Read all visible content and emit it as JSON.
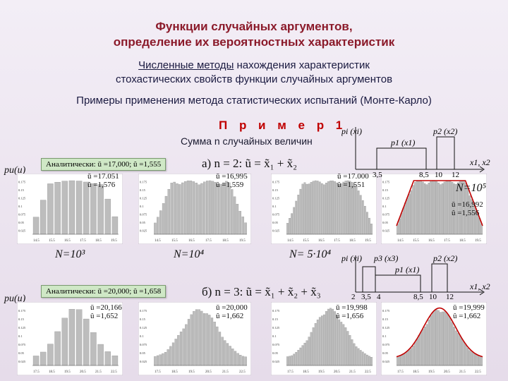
{
  "header": {
    "title_line1": "Функции случайных аргументов,",
    "title_line2": "определение их вероятностных характеристик",
    "method_link": "Численные методы",
    "method_rest": " нахождения характеристик",
    "method_line2": "стохастических свойств функции случайных аргументов",
    "examples_line": "Примеры применения метода статистических испытаний (Монте-Карло)",
    "example_title": "П р и м е р  1",
    "sum_line": "Сумма n случайных величин"
  },
  "row_a": {
    "pu_label": "pu(u)",
    "analytic": "Аналитически: ū =17,000; û =1,555",
    "case": "а) n = 2:  ũ = x̃₁ + x̃₂",
    "stats": [
      {
        "mean": "ū =17.051",
        "std": "û =1,576",
        "N": "N=10³"
      },
      {
        "mean": "ū =16,995",
        "std": "û =1,559",
        "N": "N=10⁴"
      },
      {
        "mean": "ū =17.000",
        "std": "û =1,551",
        "N": "N= 5·10⁴"
      },
      {
        "mean": "ū =16,992",
        "std": "û =1,556",
        "N": "N=10⁵"
      }
    ],
    "ticks": [
      "14.5",
      "15.5",
      "16.5",
      "17.5",
      "18.5",
      "19.5"
    ],
    "yticks": [
      "0.175",
      "0.15",
      "0.125",
      "0.1",
      "0.075",
      "0.05",
      "0.025"
    ],
    "density": {
      "labels": [
        "pi (xi)",
        "p1 (x1)",
        "p2 (x2)"
      ],
      "xticks": [
        "3,5",
        "8,5",
        "10",
        "12"
      ],
      "axis": "x1, x2"
    }
  },
  "row_b": {
    "pu_label": "pu(u)",
    "analytic": "Аналитически: ū =20,000; û =1,658",
    "case": "б) n = 3:  ũ = x̃₁ + x̃₂ + x̃₃",
    "stats": [
      {
        "mean": "ū =20,166",
        "std": "û =1,652"
      },
      {
        "mean": "ū =20,000",
        "std": "û =1,662"
      },
      {
        "mean": "ū =19,998",
        "std": "û =1,656"
      },
      {
        "mean": "ū =19,999",
        "std": "û =1,662"
      }
    ],
    "ticks": [
      "17.5",
      "18.5",
      "19.5",
      "20.5",
      "21.5",
      "22.5"
    ],
    "yticks": [
      "0.175",
      "0.15",
      "0.125",
      "0.1",
      "0.075",
      "0.05",
      "0.025"
    ],
    "density": {
      "labels": [
        "pi (xi)",
        "p3 (x3)",
        "p1 (x1)",
        "p2 (x2)"
      ],
      "xticks": [
        "2",
        "3,5",
        "4",
        "8,5",
        "10",
        "12"
      ],
      "axis": "x1, x2"
    }
  },
  "colors": {
    "title": "#8b1a2a",
    "accent": "#c00000",
    "bars": "#b9b9b9",
    "curve": "#c00000"
  }
}
